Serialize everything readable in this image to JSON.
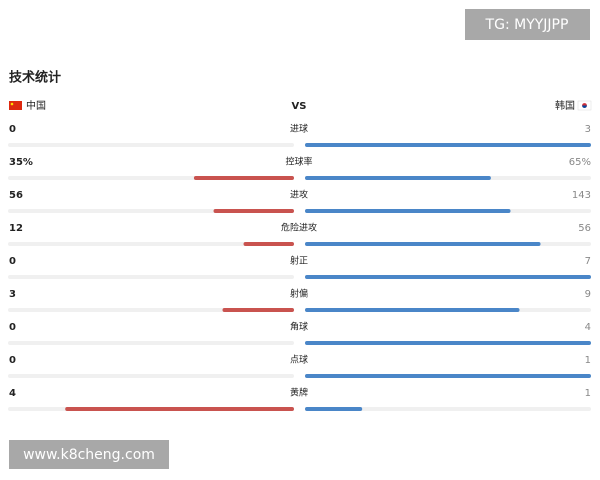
{
  "watermark_top": "TG: MYYJJPP",
  "title": "技术统计",
  "home_team": "中国",
  "vs": "VS",
  "away_team": "韩国",
  "home_color": "#c9534f",
  "away_color": "#4a86c8",
  "stats": [
    {
      "label": "进球",
      "home": 0,
      "away": 3
    },
    {
      "label": "控球率",
      "home": 35,
      "away": 65,
      "home_label": "35%",
      "away_label": "65%"
    },
    {
      "label": "进攻",
      "home": 56,
      "away": 143
    },
    {
      "label": "危险进攻",
      "home": 12,
      "away": 56
    },
    {
      "label": "射正",
      "home": 0,
      "away": 7
    },
    {
      "label": "射偏",
      "home": 3,
      "away": 9
    },
    {
      "label": "角球",
      "home": 0,
      "away": 4
    },
    {
      "label": "点球",
      "home": 0,
      "away": 1
    },
    {
      "label": "黄牌",
      "home": 4,
      "away": 1
    }
  ],
  "watermark_bottom": "www.k8cheng.com"
}
